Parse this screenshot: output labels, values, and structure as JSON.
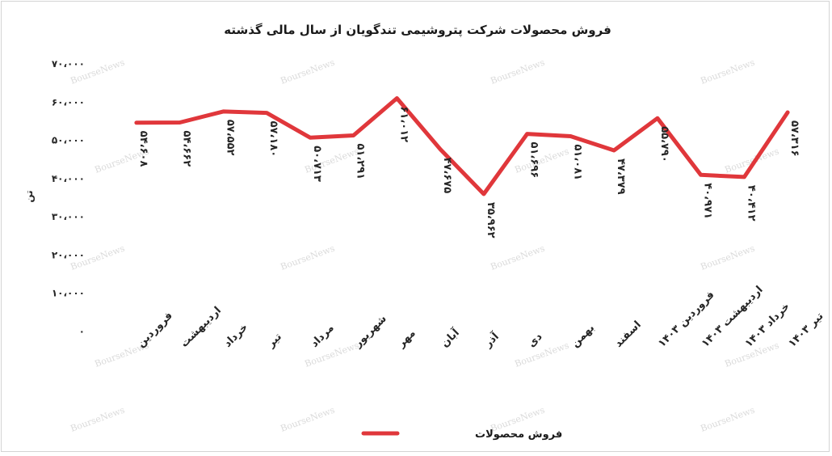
{
  "chart_data": {
    "type": "line",
    "title": "فروش محصولات شرکت پتروشیمی تندگویان از سال مالی گذشته",
    "ylabel": "تن",
    "xlabel": "",
    "ylim": [
      0,
      70000
    ],
    "yticks": [
      "۰",
      "۱۰،۰۰۰",
      "۲۰،۰۰۰",
      "۳۰،۰۰۰",
      "۴۰،۰۰۰",
      "۵۰،۰۰۰",
      "۶۰،۰۰۰",
      "۷۰،۰۰۰"
    ],
    "categories": [
      "فروردین",
      "اردیبهشت",
      "خرداد",
      "تیر",
      "مرداد",
      "شهریور",
      "مهر",
      "آبان",
      "آذر",
      "دی",
      "بهمن",
      "اسفند",
      "فروردین ۱۴۰۳",
      "اردیبهشت ۱۴۰۳",
      "خرداد ۱۴۰۳",
      "تیر ۱۴۰۳"
    ],
    "series": [
      {
        "name": "فروش محصولات",
        "color": "#e0373b",
        "values": [
          54608,
          54662,
          57552,
          57180,
          50713,
          51291,
          61012,
          47675,
          35962,
          51696,
          51081,
          47379,
          55790,
          40971,
          40412,
          57316
        ],
        "labels": [
          "۵۴،۶۰۸",
          "۵۴،۶۶۲",
          "۵۷،۵۵۲",
          "۵۷،۱۸۰",
          "۵۰،۷۱۳",
          "۵۱،۲۹۱",
          "۶۱،۰۱۲",
          "۴۷،۶۷۵",
          "۳۵،۹۶۲",
          "۵۱،۶۹۶",
          "۵۱،۰۸۱",
          "۴۷،۳۷۹",
          "۵۵،۷۹۰",
          "۴۰،۹۷۱",
          "۴۰،۴۱۲",
          "۵۷،۳۱۶"
        ]
      }
    ],
    "grid": false,
    "legend_position": "bottom",
    "watermark": "BourseNews"
  }
}
